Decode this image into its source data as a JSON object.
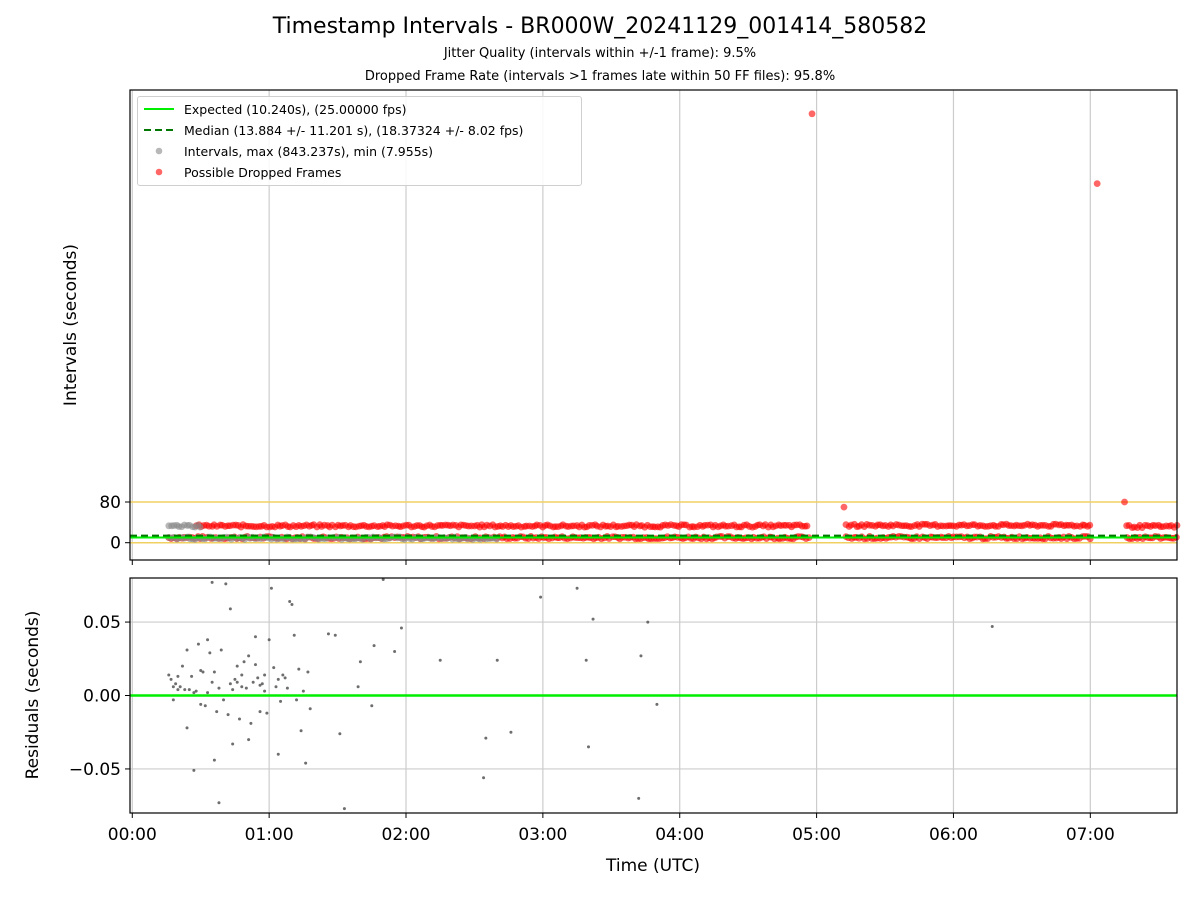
{
  "title": "Timestamp Intervals - BR000W_20241129_001414_580582",
  "subtitle_jitter": "Jitter Quality (intervals within +/-1 frame): 9.5%",
  "subtitle_dropped": "Dropped Frame Rate (intervals >1 frames late within 50 FF files): 95.8%",
  "colors": {
    "expected": "#00ee00",
    "median": "#007700",
    "intervals": "#888888",
    "dropped": "#ff0000",
    "threshold": "#f0d060",
    "residual": "#555555",
    "grid": "#cccccc"
  },
  "chart_data": [
    {
      "type": "scatter",
      "ylabel": "Intervals (seconds)",
      "ytick_labels": [
        "0",
        "80"
      ],
      "yticks": [
        0,
        80
      ],
      "ylim": [
        -34,
        890
      ],
      "xlim": [
        "23:59",
        "07:38"
      ],
      "x_unit": "minutes since 00:00 UTC",
      "xticks": [
        "00:00",
        "01:00",
        "02:00",
        "03:00",
        "04:00",
        "05:00",
        "06:00",
        "07:00"
      ],
      "grid": "vertical",
      "legend_placement": "upper left",
      "legend": [
        {
          "label": "Expected (10.240s), (25.00000 fps)",
          "style": "solid-line"
        },
        {
          "label": "Median (13.884 +/- 11.201 s), (18.37324 +/- 8.02 fps)",
          "style": "dashed-line"
        },
        {
          "label": "Intervals, max (843.237s), min (7.955s)",
          "style": "grey-dot"
        },
        {
          "label": "Possible Dropped Frames",
          "style": "red-dot"
        }
      ],
      "expected_interval": 10.24,
      "median_interval": 13.884,
      "threshold_lines": [
        0,
        80
      ],
      "dropped_outliers": [
        {
          "x": "04:58",
          "y": 843.237
        },
        {
          "x": "07:03",
          "y": 706
        },
        {
          "x": "05:12",
          "y": 70
        },
        {
          "x": "07:15",
          "y": 80
        }
      ],
      "dense_bands": [
        {
          "x_start": "00:16",
          "x_end": "04:57",
          "y": 10,
          "kind": "dropped"
        },
        {
          "x_start": "00:28",
          "x_end": "04:57",
          "y": 33,
          "kind": "dropped"
        },
        {
          "x_start": "05:13",
          "x_end": "07:01",
          "y": 10,
          "kind": "dropped"
        },
        {
          "x_start": "05:13",
          "x_end": "07:01",
          "y": 34,
          "kind": "dropped"
        },
        {
          "x_start": "07:16",
          "x_end": "07:38",
          "y": 10,
          "kind": "dropped"
        },
        {
          "x_start": "07:16",
          "x_end": "07:38",
          "y": 32,
          "kind": "dropped"
        },
        {
          "x_start": "00:16",
          "x_end": "00:30",
          "y": 33,
          "kind": "intervals"
        },
        {
          "x_start": "00:16",
          "x_end": "02:40",
          "y": 9,
          "kind": "intervals"
        }
      ]
    },
    {
      "type": "scatter",
      "ylabel": "Residuals (seconds)",
      "ytick_labels": [
        "−0.05",
        "0.00",
        "0.05"
      ],
      "yticks": [
        -0.05,
        0,
        0.05
      ],
      "ylim": [
        -0.08,
        0.08
      ],
      "xlim": [
        "23:59",
        "07:38"
      ],
      "x_unit": "minutes since 00:00 UTC",
      "xticks": [
        "00:00",
        "01:00",
        "02:00",
        "03:00",
        "04:00",
        "05:00",
        "06:00",
        "07:00"
      ],
      "xtick_labels": [
        "00:00",
        "01:00",
        "02:00",
        "03:00",
        "04:00",
        "05:00",
        "06:00",
        "07:00"
      ],
      "xlabel": "Time (UTC)",
      "grid": "both",
      "zero_line": 0,
      "points": [
        [
          16,
          0.014
        ],
        [
          17,
          0.011
        ],
        [
          18,
          -0.003
        ],
        [
          18,
          0.006
        ],
        [
          19,
          0.008
        ],
        [
          20,
          0.004
        ],
        [
          20,
          0.013
        ],
        [
          21,
          0.006
        ],
        [
          22,
          0.02
        ],
        [
          23,
          0.004
        ],
        [
          24,
          0.031
        ],
        [
          24,
          -0.022
        ],
        [
          25,
          0.004
        ],
        [
          26,
          0.013
        ],
        [
          27,
          0.002
        ],
        [
          27,
          -0.051
        ],
        [
          28,
          0.003
        ],
        [
          29,
          0.035
        ],
        [
          30,
          0.017
        ],
        [
          30,
          -0.006
        ],
        [
          31,
          0.016
        ],
        [
          32,
          -0.007
        ],
        [
          33,
          0.038
        ],
        [
          33,
          0.002
        ],
        [
          34,
          0.029
        ],
        [
          35,
          0.077
        ],
        [
          35,
          0.009
        ],
        [
          36,
          -0.044
        ],
        [
          36,
          0.016
        ],
        [
          37,
          -0.011
        ],
        [
          38,
          -0.073
        ],
        [
          38,
          0.005
        ],
        [
          39,
          0.031
        ],
        [
          40,
          -0.003
        ],
        [
          41,
          0.076
        ],
        [
          42,
          -0.013
        ],
        [
          43,
          0.059
        ],
        [
          43,
          0.008
        ],
        [
          44,
          0.004
        ],
        [
          44,
          -0.033
        ],
        [
          45,
          0.011
        ],
        [
          46,
          0.009
        ],
        [
          46,
          0.02
        ],
        [
          47,
          -0.016
        ],
        [
          48,
          0.006
        ],
        [
          48,
          0.014
        ],
        [
          49,
          0.023
        ],
        [
          50,
          0.005
        ],
        [
          51,
          -0.03
        ],
        [
          51,
          0.027
        ],
        [
          52,
          -0.019
        ],
        [
          53,
          0.009
        ],
        [
          54,
          0.04
        ],
        [
          54,
          0.021
        ],
        [
          55,
          0.012
        ],
        [
          56,
          -0.011
        ],
        [
          56,
          0.007
        ],
        [
          57,
          0.008
        ],
        [
          58,
          0.014
        ],
        [
          58,
          0.003
        ],
        [
          59,
          -0.012
        ],
        [
          60,
          0.038
        ],
        [
          61,
          0.073
        ],
        [
          62,
          0.019
        ],
        [
          63,
          0.006
        ],
        [
          64,
          0.011
        ],
        [
          64,
          -0.04
        ],
        [
          65,
          -0.004
        ],
        [
          66,
          0.014
        ],
        [
          67,
          0.012
        ],
        [
          68,
          0.005
        ],
        [
          69,
          0.064
        ],
        [
          70,
          0.062
        ],
        [
          71,
          0.041
        ],
        [
          72,
          -0.003
        ],
        [
          73,
          0.018
        ],
        [
          74,
          -0.024
        ],
        [
          75,
          0.003
        ],
        [
          76,
          -0.046
        ],
        [
          77,
          0.016
        ],
        [
          78,
          -0.009
        ],
        [
          86,
          0.042
        ],
        [
          89,
          0.041
        ],
        [
          91,
          -0.026
        ],
        [
          93,
          -0.077
        ],
        [
          99,
          0.006
        ],
        [
          100,
          0.023
        ],
        [
          105,
          -0.007
        ],
        [
          106,
          0.034
        ],
        [
          110,
          0.079
        ],
        [
          115,
          0.03
        ],
        [
          118,
          0.046
        ],
        [
          135,
          0.024
        ],
        [
          154,
          -0.056
        ],
        [
          155,
          -0.029
        ],
        [
          160,
          0.024
        ],
        [
          166,
          -0.025
        ],
        [
          179,
          0.067
        ],
        [
          195,
          0.073
        ],
        [
          199,
          0.024
        ],
        [
          200,
          -0.035
        ],
        [
          202,
          0.052
        ],
        [
          222,
          -0.07
        ],
        [
          223,
          0.027
        ],
        [
          226,
          0.05
        ],
        [
          230,
          -0.006
        ],
        [
          377,
          0.047
        ]
      ]
    }
  ]
}
